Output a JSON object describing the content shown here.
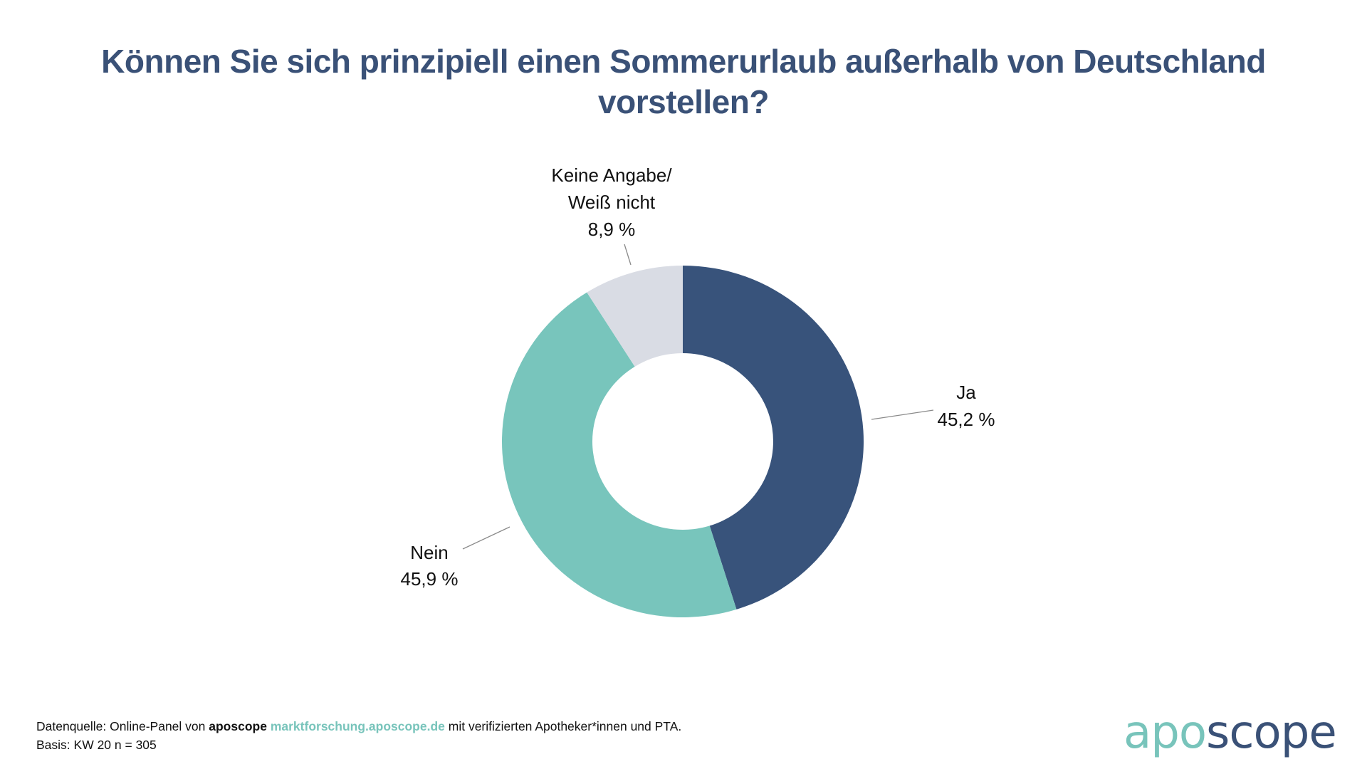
{
  "title": {
    "line1": "Können Sie sich prinzipiell einen Sommerurlaub außerhalb von Deutschland",
    "line2": "vorstellen?"
  },
  "chart_data": {
    "type": "pie",
    "variant": "donut",
    "title": "Können Sie sich prinzipiell einen Sommerurlaub außerhalb von Deutschland vorstellen?",
    "unit": "%",
    "start": "12 o'clock, clockwise",
    "slices": [
      {
        "name": "Ja",
        "value": 45.2,
        "label_lines": [
          "Ja",
          "45,2 %"
        ],
        "color": "#38537b",
        "label_side": "right"
      },
      {
        "name": "Nein",
        "value": 45.9,
        "label_lines": [
          "Nein",
          "45,9 %"
        ],
        "color": "#78c5bc",
        "label_side": "left"
      },
      {
        "name": "Keine Angabe/ Weiß nicht",
        "value": 8.9,
        "label_lines": [
          "Keine Angabe/",
          "Weiß nicht",
          "8,9 %"
        ],
        "color": "#d9dce4",
        "label_side": "top"
      }
    ]
  },
  "footer": {
    "line1_prefix": "Datenquelle: Online-Panel von ",
    "brand": "aposcope",
    "url": "marktforschung.aposcope.de",
    "line1_suffix": " mit verifizierten Apotheker*innen und PTA.",
    "line2": "Basis: KW 20 n = 305"
  },
  "logo": {
    "part1": "apo",
    "part2": "scope",
    "colors": {
      "apo": "#78c4bb",
      "scope": "#3a5177"
    }
  }
}
